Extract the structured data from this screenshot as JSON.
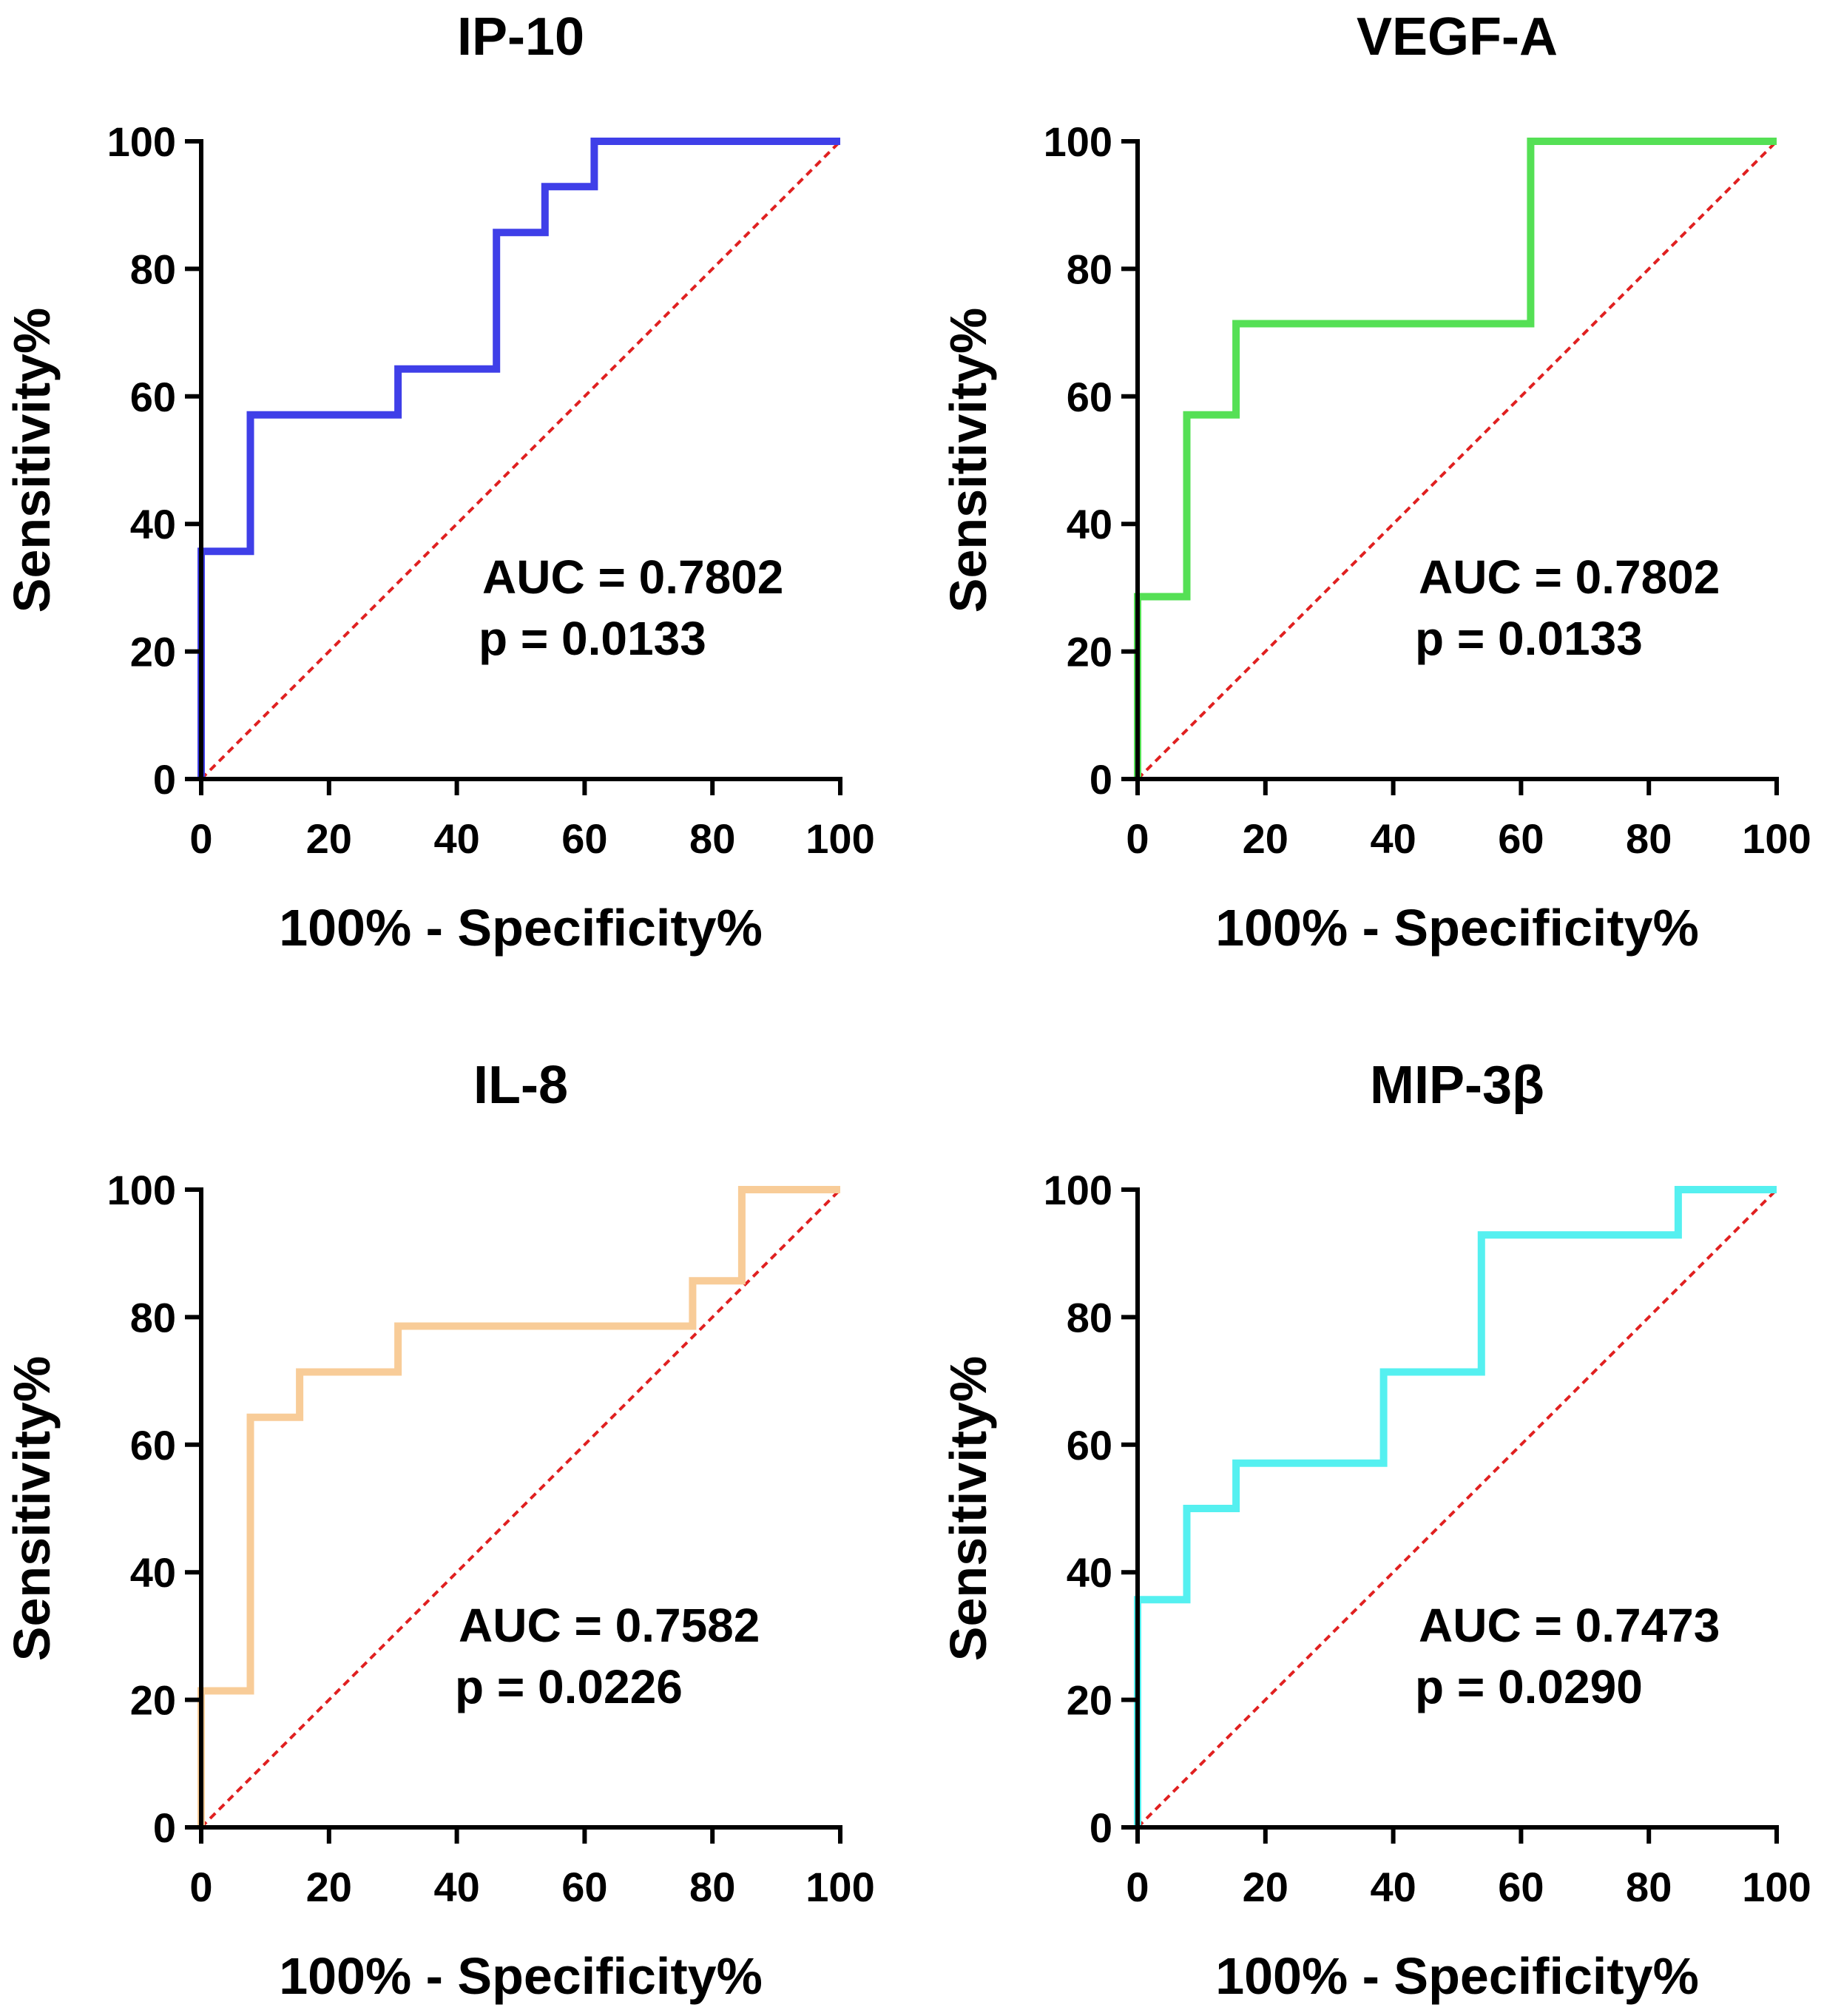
{
  "chart_data": [
    {
      "type": "line",
      "title": "IP-10",
      "xlabel": "100% - Specificity%",
      "ylabel": "Sensitivity%",
      "xlim": [
        0,
        100
      ],
      "ylim": [
        0,
        100
      ],
      "xticks": [
        "0",
        "20",
        "40",
        "60",
        "80",
        "100"
      ],
      "yticks": [
        "0",
        "20",
        "40",
        "60",
        "80",
        "100"
      ],
      "color": "#3f3fe8",
      "series": [
        {
          "name": "ROC",
          "x": [
            0,
            0,
            7.7,
            7.7,
            30.8,
            30.8,
            46.2,
            46.2,
            53.8,
            53.8,
            61.5,
            61.5,
            100
          ],
          "y": [
            0,
            35.7,
            35.7,
            57.1,
            57.1,
            64.3,
            64.3,
            85.7,
            85.7,
            92.9,
            92.9,
            100,
            100
          ]
        },
        {
          "name": "reference",
          "x": [
            0,
            100
          ],
          "y": [
            0,
            100
          ]
        }
      ],
      "auc_text": "AUC = 0.7802",
      "p_text": "p = 0.0133"
    },
    {
      "type": "line",
      "title": "VEGF-A",
      "xlabel": "100% - Specificity%",
      "ylabel": "Sensitivity%",
      "xlim": [
        0,
        100
      ],
      "ylim": [
        0,
        100
      ],
      "xticks": [
        "0",
        "20",
        "40",
        "60",
        "80",
        "100"
      ],
      "yticks": [
        "0",
        "20",
        "40",
        "60",
        "80",
        "100"
      ],
      "color": "#55e055",
      "series": [
        {
          "name": "ROC",
          "x": [
            0,
            0,
            7.7,
            7.7,
            15.4,
            15.4,
            61.5,
            61.5,
            100
          ],
          "y": [
            0,
            28.6,
            28.6,
            57.1,
            57.1,
            71.4,
            71.4,
            100,
            100
          ]
        },
        {
          "name": "reference",
          "x": [
            0,
            100
          ],
          "y": [
            0,
            100
          ]
        }
      ],
      "auc_text": "AUC = 0.7802",
      "p_text": "p = 0.0133"
    },
    {
      "type": "line",
      "title": "IL-8",
      "xlabel": "100% - Specificity%",
      "ylabel": "Sensitivity%",
      "xlim": [
        0,
        100
      ],
      "ylim": [
        0,
        100
      ],
      "xticks": [
        "0",
        "20",
        "40",
        "60",
        "80",
        "100"
      ],
      "yticks": [
        "0",
        "20",
        "40",
        "60",
        "80",
        "100"
      ],
      "color": "#f8cc98",
      "series": [
        {
          "name": "ROC",
          "x": [
            0,
            0,
            7.7,
            7.7,
            15.4,
            15.4,
            30.8,
            30.8,
            76.9,
            76.9,
            84.6,
            84.6,
            100
          ],
          "y": [
            0,
            21.4,
            21.4,
            64.3,
            64.3,
            71.4,
            71.4,
            78.6,
            78.6,
            85.7,
            85.7,
            100,
            100
          ]
        },
        {
          "name": "reference",
          "x": [
            0,
            100
          ],
          "y": [
            0,
            100
          ]
        }
      ],
      "auc_text": "AUC = 0.7582",
      "p_text": "p = 0.0226"
    },
    {
      "type": "line",
      "title": "MIP-3β",
      "xlabel": "100% - Specificity%",
      "ylabel": "Sensitivity%",
      "xlim": [
        0,
        100
      ],
      "ylim": [
        0,
        100
      ],
      "xticks": [
        "0",
        "20",
        "40",
        "60",
        "80",
        "100"
      ],
      "yticks": [
        "0",
        "20",
        "40",
        "60",
        "80",
        "100"
      ],
      "color": "#55f0f0",
      "series": [
        {
          "name": "ROC",
          "x": [
            0,
            0,
            7.7,
            7.7,
            15.4,
            15.4,
            38.5,
            38.5,
            53.8,
            53.8,
            84.6,
            84.6,
            100
          ],
          "y": [
            0,
            35.7,
            35.7,
            50,
            50,
            57.1,
            57.1,
            71.4,
            71.4,
            92.9,
            92.9,
            100,
            100
          ]
        },
        {
          "name": "reference",
          "x": [
            0,
            100
          ],
          "y": [
            0,
            100
          ]
        }
      ],
      "auc_text": "AUC = 0.7473",
      "p_text": "p = 0.0290"
    }
  ],
  "colors": {
    "reference": "#e02020",
    "axis": "#000000"
  }
}
